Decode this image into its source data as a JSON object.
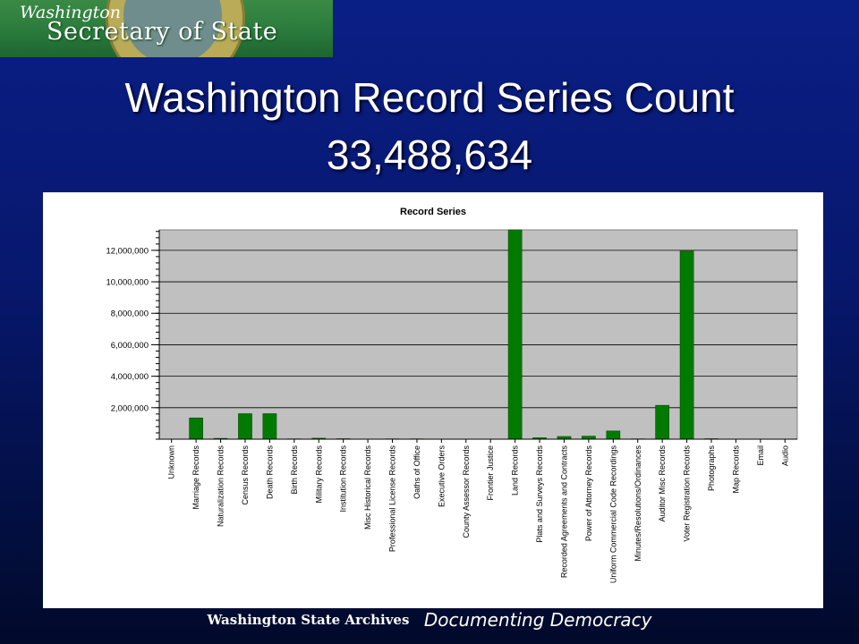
{
  "header": {
    "logo_line1": "Washington",
    "logo_line2": "Secretary of State"
  },
  "slide": {
    "title_line1": "Washington Record Series Count",
    "title_line2": "33,488,634"
  },
  "footer": {
    "org": "Washington State Archives",
    "motto": "Documenting Democracy"
  },
  "colors": {
    "bar": "#007a00",
    "plot_bg": "#c0c0c0",
    "background_top": "#0a1f86",
    "background_bottom": "#010a2a",
    "logo_green": "#2a7a3c"
  },
  "chart_data": {
    "type": "bar",
    "title": "Record Series",
    "categories": [
      "Unknown",
      "Marriage Records",
      "Naturalization Records",
      "Census Records",
      "Death Records",
      "Birth Records",
      "Military Records",
      "Institution Records",
      "Misc Historical Records",
      "Professional License Records",
      "Oaths of Office",
      "Executive Orders",
      "County Assessor Records",
      "Frontier Justice",
      "Land Records",
      "Plats and Surveys Records",
      "Recorded Agreements and Contracts",
      "Power of Attorney Records",
      "Uniform Commercial Code Recordings",
      "Minutes/Resolutions/Ordinances",
      "Auditor Misc Records",
      "Voter Registration Records",
      "Photographs",
      "Map Records",
      "Email",
      "Audio"
    ],
    "values": [
      0,
      1350000,
      50000,
      1620000,
      1620000,
      20000,
      60000,
      30000,
      0,
      20000,
      20000,
      0,
      0,
      10000,
      13300000,
      90000,
      170000,
      190000,
      520000,
      20000,
      2150000,
      11950000,
      30000,
      0,
      0,
      0
    ],
    "ylim": [
      0,
      13300000
    ],
    "yticks": [
      2000000,
      4000000,
      6000000,
      8000000,
      10000000,
      12000000
    ],
    "ytick_labels": [
      "2,000,000",
      "4,000,000",
      "6,000,000",
      "8,000,000",
      "10,000,000",
      "12,000,000"
    ],
    "xlabel": "",
    "ylabel": "",
    "grid": true,
    "legend": "none"
  }
}
